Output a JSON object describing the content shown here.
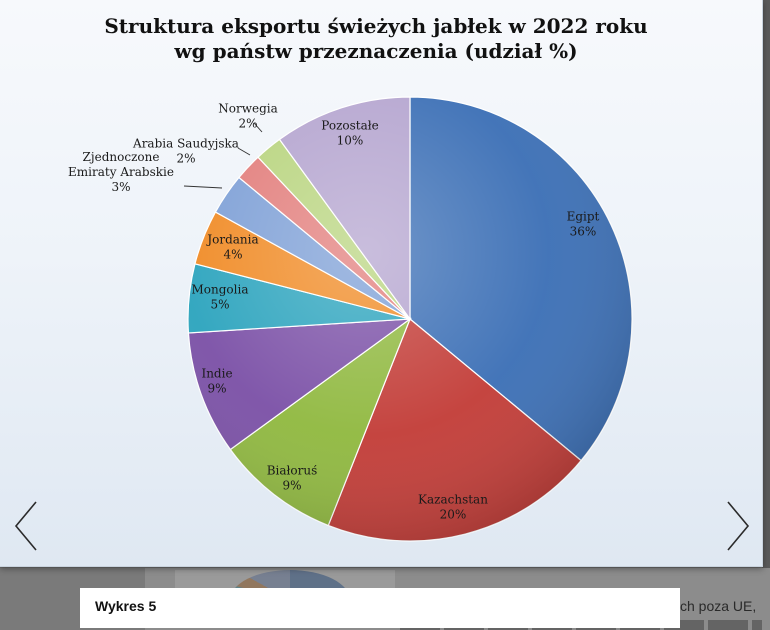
{
  "caption": "Wykres 5",
  "background_snippet": "ch poza UE,",
  "navigation": {
    "prev_icon": "chevron-left-icon",
    "next_icon": "chevron-right-icon"
  },
  "chart_data": {
    "type": "pie",
    "title_lines": [
      "Struktura eksportu świeżych  jabłek  w 2022  roku",
      "wg państw przeznaczenia (udział %)"
    ],
    "unit": "%",
    "start_angle_deg": 0,
    "direction": "clockwise",
    "slices": [
      {
        "label_lines": [
          "Egipt"
        ],
        "value": 36,
        "value_label": "36%",
        "color": "#3a6eb5"
      },
      {
        "label_lines": [
          "Kazachstan"
        ],
        "value": 20,
        "value_label": "20%",
        "color": "#c23b36"
      },
      {
        "label_lines": [
          "Białoruś"
        ],
        "value": 9,
        "value_label": "9%",
        "color": "#8fb83e"
      },
      {
        "label_lines": [
          "Indie"
        ],
        "value": 9,
        "value_label": "9%",
        "color": "#7a4fa6"
      },
      {
        "label_lines": [
          "Mongolia"
        ],
        "value": 5,
        "value_label": "5%",
        "color": "#2aa3bd"
      },
      {
        "label_lines": [
          "Jordania"
        ],
        "value": 4,
        "value_label": "4%",
        "color": "#f08a24"
      },
      {
        "label_lines": [
          "Zjednoczone",
          "Emiraty  Arabskie"
        ],
        "value": 3,
        "value_label": "3%",
        "color": "#7d9fd6"
      },
      {
        "label_lines": [
          "Arabia  Saudyjska"
        ],
        "value": 2,
        "value_label": "2%",
        "color": "#e27d7b"
      },
      {
        "label_lines": [
          "Norwegia"
        ],
        "value": 2,
        "value_label": "2%",
        "color": "#b8d47e"
      },
      {
        "label_lines": [
          "Pozostałe"
        ],
        "value": 10,
        "value_label": "10%",
        "color": "#b4a4cf"
      }
    ]
  }
}
